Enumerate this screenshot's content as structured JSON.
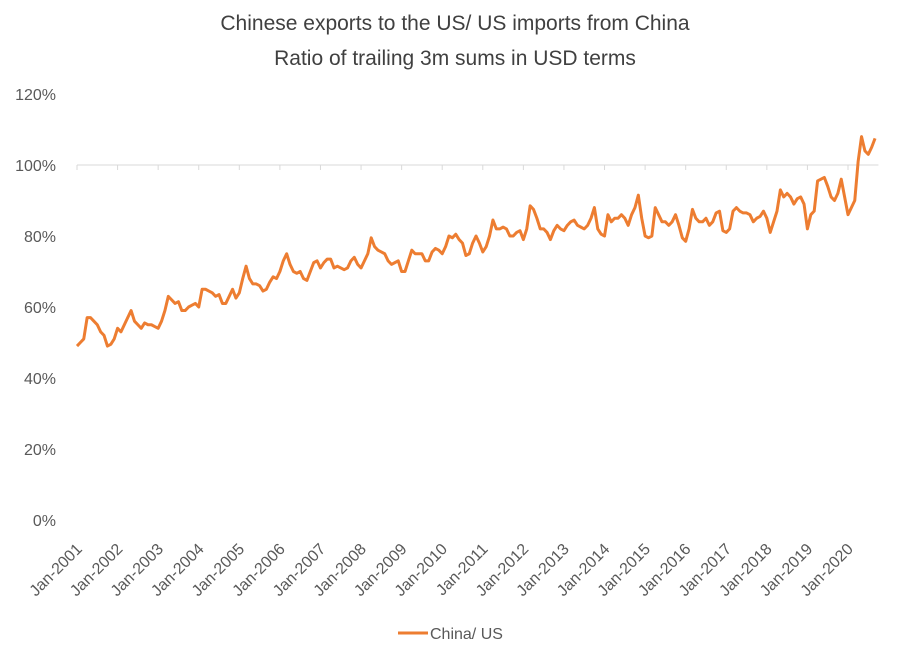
{
  "chart_data": {
    "type": "line",
    "title": "Chinese exports to the US/ US imports from China",
    "subtitle": "Ratio of trailing 3m sums in USD terms",
    "categories": [
      "Jan-2001",
      null,
      null,
      null,
      null,
      null,
      null,
      null,
      null,
      null,
      null,
      null,
      "Jan-2002",
      null,
      null,
      null,
      null,
      null,
      null,
      null,
      null,
      null,
      null,
      null,
      "Jan-2003",
      null,
      null,
      null,
      null,
      null,
      null,
      null,
      null,
      null,
      null,
      null,
      "Jan-2004",
      null,
      null,
      null,
      null,
      null,
      null,
      null,
      null,
      null,
      null,
      null,
      "Jan-2005",
      null,
      null,
      null,
      null,
      null,
      null,
      null,
      null,
      null,
      null,
      null,
      "Jan-2006",
      null,
      null,
      null,
      null,
      null,
      null,
      null,
      null,
      null,
      null,
      null,
      "Jan-2007",
      null,
      null,
      null,
      null,
      null,
      null,
      null,
      null,
      null,
      null,
      null,
      "Jan-2008",
      null,
      null,
      null,
      null,
      null,
      null,
      null,
      null,
      null,
      null,
      null,
      "Jan-2009",
      null,
      null,
      null,
      null,
      null,
      null,
      null,
      null,
      null,
      null,
      null,
      "Jan-2010",
      null,
      null,
      null,
      null,
      null,
      null,
      null,
      null,
      null,
      null,
      null,
      "Jan-2011",
      null,
      null,
      null,
      null,
      null,
      null,
      null,
      null,
      null,
      null,
      null,
      "Jan-2012",
      null,
      null,
      null,
      null,
      null,
      null,
      null,
      null,
      null,
      null,
      null,
      "Jan-2013",
      null,
      null,
      null,
      null,
      null,
      null,
      null,
      null,
      null,
      null,
      null,
      "Jan-2014",
      null,
      null,
      null,
      null,
      null,
      null,
      null,
      null,
      null,
      null,
      null,
      "Jan-2015",
      null,
      null,
      null,
      null,
      null,
      null,
      null,
      null,
      null,
      null,
      null,
      "Jan-2016",
      null,
      null,
      null,
      null,
      null,
      null,
      null,
      null,
      null,
      null,
      null,
      "Jan-2017",
      null,
      null,
      null,
      null,
      null,
      null,
      null,
      null,
      null,
      null,
      null,
      "Jan-2018",
      null,
      null,
      null,
      null,
      null,
      null,
      null,
      null,
      null,
      null,
      null,
      "Jan-2019",
      null,
      null,
      null,
      null,
      null,
      null,
      null,
      null,
      null,
      null,
      null,
      "Jan-2020",
      null,
      null,
      null,
      null,
      null,
      null,
      null,
      null
    ],
    "series": [
      {
        "name": "China/ US",
        "color": "#ed7d31",
        "values": [
          49,
          50,
          51,
          57,
          57,
          56,
          55,
          53,
          52,
          49,
          49.5,
          51,
          54,
          53,
          55,
          57,
          59,
          56,
          55,
          54,
          55.5,
          55,
          55,
          54.5,
          54,
          56,
          59,
          63,
          62,
          61,
          61.5,
          59,
          59,
          60,
          60.5,
          61,
          60,
          65,
          65,
          64.5,
          64,
          63,
          63.5,
          61,
          61,
          63,
          65,
          62.5,
          64,
          68,
          71.5,
          68,
          66.5,
          66.5,
          66,
          64.5,
          65,
          67,
          68.5,
          68,
          70,
          73,
          75,
          72,
          70,
          69.5,
          70,
          68,
          67.5,
          70,
          72.5,
          73,
          71,
          72.5,
          73.5,
          73.5,
          71,
          71.5,
          71,
          70.5,
          71,
          73,
          74,
          72,
          71,
          73,
          75,
          79.5,
          77,
          76,
          75.5,
          75,
          73,
          72,
          72.5,
          73,
          70,
          70,
          73,
          76,
          75,
          75,
          75,
          73,
          73,
          75.5,
          76.5,
          76,
          75,
          77,
          80,
          79.5,
          80.5,
          79,
          78,
          74.5,
          75,
          78,
          80,
          78,
          75.5,
          77,
          80,
          84.5,
          82,
          82,
          82.5,
          82,
          80,
          80,
          81,
          81.5,
          79,
          82,
          88.5,
          87.5,
          85,
          82,
          82,
          81,
          79,
          81.5,
          83,
          82,
          81.5,
          83,
          84,
          84.5,
          83,
          82.5,
          82,
          83,
          85,
          88,
          82,
          80.5,
          80,
          86,
          84,
          85,
          85,
          86,
          85,
          83,
          86,
          88,
          91.5,
          85,
          80,
          79.5,
          80,
          88,
          86,
          84,
          84,
          83,
          84,
          86,
          83,
          79.5,
          78.5,
          82,
          87.5,
          85,
          84,
          84,
          85,
          83,
          84,
          86.5,
          87,
          81.5,
          81,
          82,
          87,
          88,
          87,
          86.5,
          86.5,
          86,
          84,
          85,
          85.5,
          87,
          85,
          81,
          84,
          87,
          93,
          91,
          92,
          91,
          89,
          90.5,
          91,
          89,
          82,
          86,
          87,
          95.5,
          96,
          96.5,
          94,
          91,
          90,
          92,
          96,
          91,
          86,
          88,
          90,
          101,
          108,
          104,
          103,
          105,
          107.5
        ]
      }
    ],
    "ylim": [
      0,
      120
    ],
    "yticks": [
      {
        "value": 0,
        "label": "0%"
      },
      {
        "value": 20,
        "label": "20%"
      },
      {
        "value": 40,
        "label": "40%"
      },
      {
        "value": 60,
        "label": "60%"
      },
      {
        "value": 80,
        "label": "80%"
      },
      {
        "value": 100,
        "label": "100%"
      },
      {
        "value": 120,
        "label": "120%"
      }
    ],
    "xaxis_at": 100,
    "grid": false,
    "legend": "bottom"
  }
}
